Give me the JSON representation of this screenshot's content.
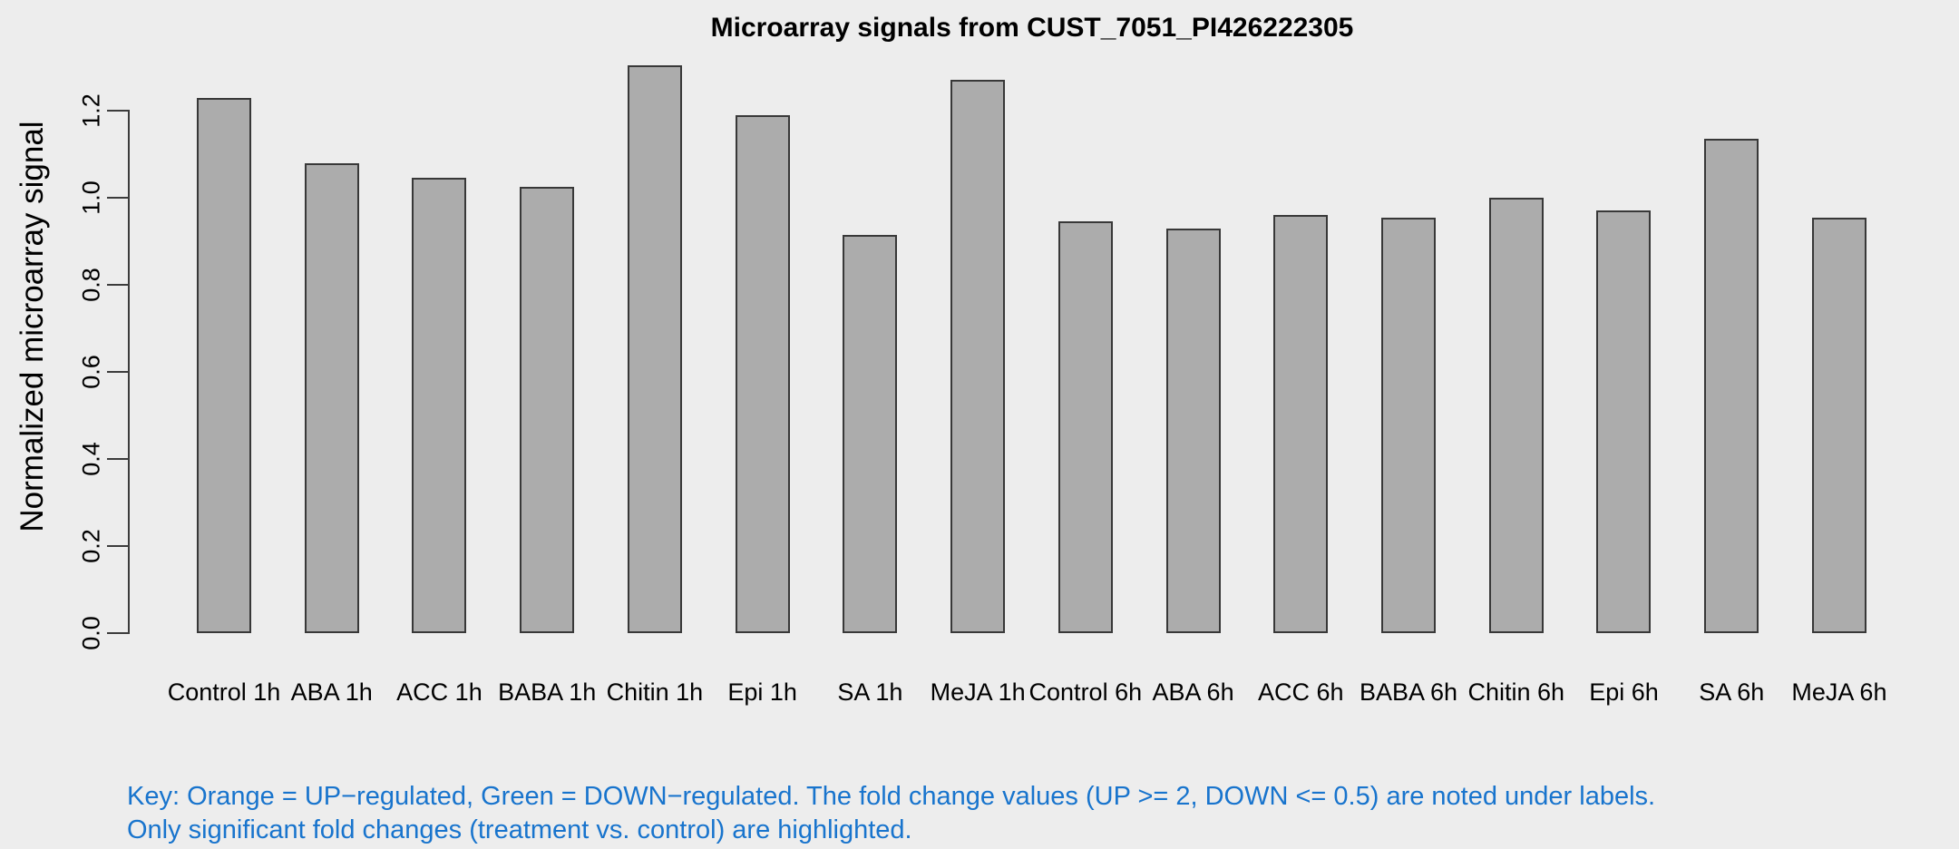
{
  "chart_data": {
    "type": "bar",
    "title": "Microarray signals from CUST_7051_PI426222305",
    "xlabel": "",
    "ylabel": "Normalized microarray signal",
    "categories": [
      "Control 1h",
      "ABA 1h",
      "ACC 1h",
      "BABA 1h",
      "Chitin 1h",
      "Epi 1h",
      "SA 1h",
      "MeJA 1h",
      "Control 6h",
      "ABA 6h",
      "ACC 6h",
      "BABA 6h",
      "Chitin 6h",
      "Epi 6h",
      "SA 6h",
      "MeJA 6h"
    ],
    "values": [
      1.23,
      1.08,
      1.045,
      1.025,
      1.305,
      1.19,
      0.915,
      1.27,
      0.945,
      0.93,
      0.96,
      0.955,
      1.0,
      0.97,
      1.135,
      0.955
    ],
    "yticks": [
      0.0,
      0.2,
      0.4,
      0.6,
      0.8,
      1.0,
      1.2
    ],
    "ylim": [
      0,
      1.33
    ],
    "grid": false,
    "legend": "none",
    "colors": {
      "background": "#EDEDED",
      "bar_fill": "#ACACAC",
      "bar_border": "#383838",
      "axis": "#3c3c3c",
      "text": "#000000"
    }
  },
  "notes": {
    "line1": "Key: Orange = UP−regulated, Green = DOWN−regulated. The fold change values (UP >= 2, DOWN <= 0.5) are noted under labels.",
    "line2": "Only significant fold changes (treatment vs. control) are highlighted.",
    "color": "#1874CD"
  }
}
